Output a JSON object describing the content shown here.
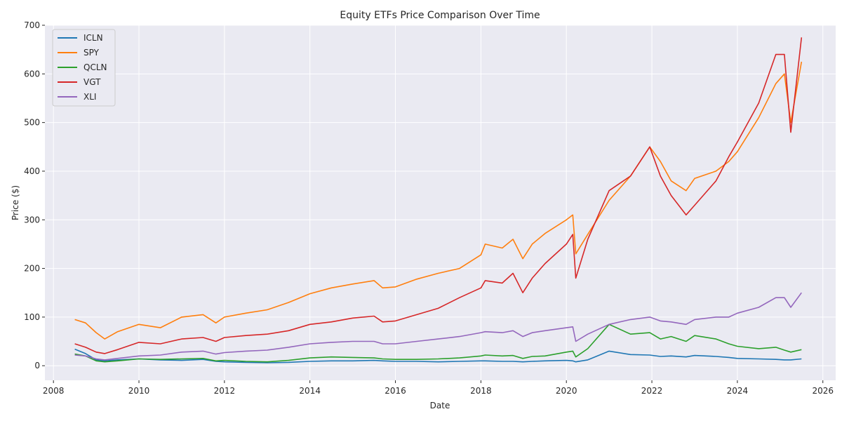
{
  "chart_data": {
    "type": "line",
    "title": "Equity ETFs Price Comparison Over Time",
    "xlabel": "Date",
    "ylabel": "Price ($)",
    "xlim": [
      2007.8,
      2026.3
    ],
    "ylim": [
      -30,
      700
    ],
    "x_ticks": [
      2008,
      2010,
      2012,
      2014,
      2016,
      2018,
      2020,
      2022,
      2024,
      2026
    ],
    "y_ticks": [
      0,
      100,
      200,
      300,
      400,
      500,
      600,
      700
    ],
    "grid": true,
    "legend_position": "top-left",
    "x": [
      2008.5,
      2008.75,
      2009.0,
      2009.2,
      2009.5,
      2010.0,
      2010.5,
      2011.0,
      2011.5,
      2011.8,
      2012.0,
      2012.5,
      2013.0,
      2013.5,
      2014.0,
      2014.5,
      2015.0,
      2015.5,
      2015.7,
      2016.0,
      2016.5,
      2017.0,
      2017.5,
      2018.0,
      2018.1,
      2018.5,
      2018.75,
      2018.98,
      2019.2,
      2019.5,
      2020.0,
      2020.15,
      2020.22,
      2020.5,
      2021.0,
      2021.5,
      2021.95,
      2022.2,
      2022.45,
      2022.8,
      2023.0,
      2023.5,
      2023.8,
      2024.0,
      2024.5,
      2024.9,
      2025.1,
      2025.25,
      2025.5
    ],
    "series": [
      {
        "name": "ICLN",
        "color": "#1f77b4",
        "values": [
          34,
          25,
          12,
          10,
          12,
          14,
          12,
          11,
          13,
          9,
          8,
          7,
          6,
          7,
          9,
          10,
          10,
          11,
          10,
          9,
          9,
          8,
          9,
          10,
          10,
          9,
          9,
          8,
          9,
          10,
          11,
          10,
          8,
          12,
          30,
          23,
          22,
          19,
          20,
          18,
          21,
          19,
          17,
          15,
          14,
          13,
          12,
          12,
          14
        ]
      },
      {
        "name": "SPY",
        "color": "#ff7f0e",
        "values": [
          95,
          88,
          68,
          55,
          70,
          85,
          78,
          100,
          105,
          88,
          100,
          108,
          115,
          130,
          148,
          160,
          168,
          175,
          160,
          162,
          178,
          190,
          200,
          228,
          250,
          242,
          260,
          220,
          250,
          272,
          300,
          310,
          230,
          270,
          340,
          390,
          450,
          420,
          380,
          360,
          385,
          400,
          420,
          440,
          510,
          580,
          600,
          500,
          625
        ]
      },
      {
        "name": "QCLN",
        "color": "#2ca02c",
        "values": [
          24,
          20,
          10,
          8,
          10,
          14,
          13,
          14,
          15,
          10,
          11,
          9,
          8,
          11,
          16,
          18,
          17,
          16,
          14,
          13,
          13,
          14,
          16,
          20,
          22,
          20,
          21,
          15,
          19,
          20,
          28,
          30,
          18,
          35,
          85,
          65,
          68,
          55,
          60,
          50,
          62,
          55,
          45,
          40,
          35,
          38,
          32,
          28,
          33
        ]
      },
      {
        "name": "VGT",
        "color": "#d62728",
        "values": [
          45,
          38,
          28,
          25,
          33,
          48,
          45,
          55,
          58,
          50,
          58,
          62,
          65,
          72,
          85,
          90,
          98,
          102,
          90,
          92,
          105,
          118,
          140,
          160,
          175,
          170,
          190,
          150,
          180,
          210,
          250,
          270,
          180,
          260,
          360,
          390,
          450,
          390,
          350,
          310,
          330,
          380,
          430,
          460,
          540,
          640,
          640,
          480,
          675
        ]
      },
      {
        "name": "XLI",
        "color": "#9467bd",
        "values": [
          22,
          20,
          14,
          12,
          15,
          20,
          22,
          28,
          30,
          24,
          27,
          30,
          32,
          38,
          45,
          48,
          50,
          50,
          45,
          45,
          50,
          55,
          60,
          68,
          70,
          68,
          72,
          60,
          68,
          72,
          78,
          80,
          50,
          65,
          85,
          95,
          100,
          92,
          90,
          85,
          95,
          100,
          100,
          108,
          120,
          140,
          140,
          120,
          150
        ]
      }
    ]
  }
}
